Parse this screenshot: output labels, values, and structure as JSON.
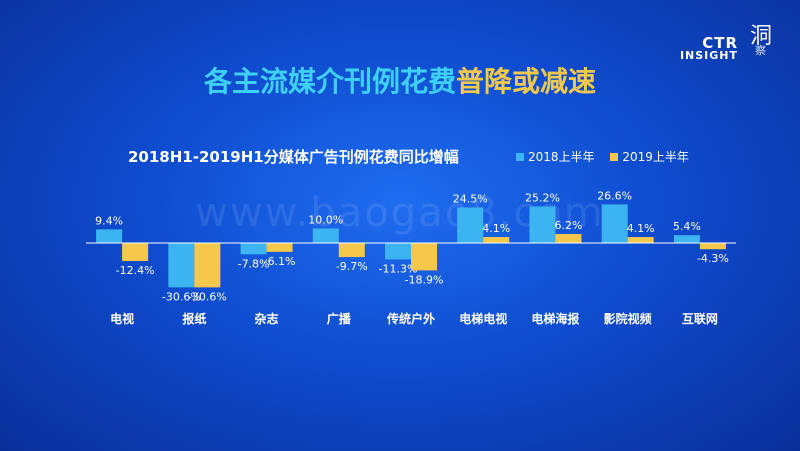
{
  "logo": {
    "ctr": "CTR",
    "insight": "INSIGHT",
    "cn_top": "洞",
    "cn_bottom": "察"
  },
  "headline": {
    "part1": "各主流媒介刊例花费",
    "part2": "普降或减速"
  },
  "watermark": "www.baogao8.com",
  "colors": {
    "series2018": "#3db4f2",
    "series2019": "#f5c84c",
    "axis": "#ffffff"
  },
  "chart_data": {
    "type": "bar",
    "title": "2018H1-2019H1分媒体广告刊例花费同比增幅",
    "categories": [
      "电视",
      "报纸",
      "杂志",
      "广播",
      "传统户外",
      "电梯电视",
      "电梯海报",
      "影院视频",
      "互联网"
    ],
    "series": [
      {
        "name": "2018上半年",
        "values": [
          9.4,
          -30.6,
          -7.8,
          10.0,
          -11.3,
          24.5,
          25.2,
          26.6,
          5.4
        ],
        "labels": [
          "9.4%",
          "-30.6%",
          "-7.8%",
          "10.0%",
          "-11.3%",
          "24.5%",
          "25.2%",
          "26.6%",
          "5.4%"
        ]
      },
      {
        "name": "2019上半年",
        "values": [
          -12.4,
          -30.6,
          -6.1,
          -9.7,
          -18.9,
          4.1,
          6.2,
          4.1,
          -4.3
        ],
        "labels": [
          "-12.4%",
          "-30.6%",
          "-6.1%",
          "-9.7%",
          "-18.9%",
          "4.1%",
          "6.2%",
          "4.1%",
          "-4.3%"
        ]
      }
    ],
    "xlabel": "",
    "ylabel": "",
    "ylim": [
      -32,
      28
    ],
    "legend": "top-right",
    "grid": false
  }
}
